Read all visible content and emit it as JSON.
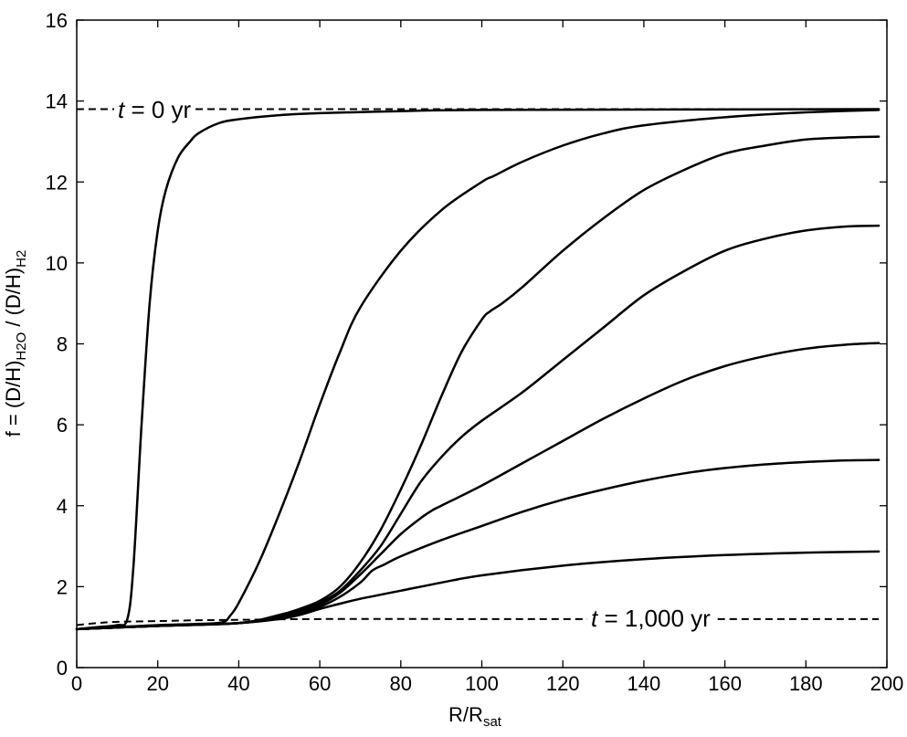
{
  "chart_data": {
    "type": "line",
    "xlabel": {
      "main": "R/R",
      "sub": "sat"
    },
    "ylabel": {
      "p1": "f = (D/H)",
      "s1": "H2O",
      "p2": " / (D/H)",
      "s2": "H2"
    },
    "xlim": [
      0,
      200
    ],
    "ylim": [
      0,
      16
    ],
    "xticks": [
      0,
      20,
      40,
      60,
      80,
      100,
      120,
      140,
      160,
      180,
      200
    ],
    "yticks": [
      0,
      2,
      4,
      6,
      8,
      10,
      12,
      14,
      16
    ],
    "grid": false,
    "annotations": [
      {
        "t": "t",
        "rest": " = 0 yr"
      },
      {
        "t": "t",
        "rest": " = 1,000 yr"
      }
    ],
    "reference_lines": [
      {
        "type": "dashed",
        "x": [
          0,
          30,
          60,
          120,
          198
        ],
        "y": [
          13.8,
          13.8,
          13.8,
          13.8,
          13.8
        ]
      },
      {
        "type": "dashed",
        "x": [
          0,
          5,
          10,
          20,
          30,
          40,
          60,
          100,
          150,
          198
        ],
        "y": [
          1.05,
          1.1,
          1.13,
          1.15,
          1.17,
          1.18,
          1.2,
          1.2,
          1.2,
          1.2
        ]
      }
    ],
    "series": [
      {
        "x": [
          0,
          5,
          10,
          12.5,
          14,
          16,
          18,
          20,
          22,
          25,
          28,
          30,
          35,
          40,
          50,
          60,
          80,
          100,
          198
        ],
        "y": [
          0.95,
          1.0,
          1.05,
          1.2,
          2.5,
          6.0,
          9.0,
          10.8,
          11.8,
          12.6,
          13.0,
          13.2,
          13.45,
          13.55,
          13.65,
          13.7,
          13.75,
          13.78,
          13.8
        ]
      },
      {
        "x": [
          0,
          10,
          20,
          30,
          36,
          38,
          40,
          45,
          50,
          55,
          60,
          65,
          70,
          80,
          90,
          100,
          103,
          110,
          120,
          130,
          140,
          160,
          180,
          198
        ],
        "y": [
          0.95,
          1.0,
          1.05,
          1.08,
          1.12,
          1.3,
          1.6,
          2.6,
          3.8,
          5.1,
          6.5,
          7.8,
          8.9,
          10.3,
          11.3,
          12.0,
          12.15,
          12.5,
          12.9,
          13.2,
          13.4,
          13.6,
          13.72,
          13.78
        ]
      },
      {
        "x": [
          0,
          20,
          40,
          50,
          55,
          60,
          65,
          70,
          75,
          80,
          85,
          90,
          95,
          100,
          102,
          105,
          110,
          120,
          130,
          140,
          150,
          160,
          170,
          180,
          190,
          198
        ],
        "y": [
          0.95,
          1.03,
          1.1,
          1.3,
          1.45,
          1.65,
          2.0,
          2.6,
          3.4,
          4.4,
          5.5,
          6.7,
          7.8,
          8.6,
          8.8,
          9.0,
          9.4,
          10.3,
          11.1,
          11.8,
          12.3,
          12.7,
          12.9,
          13.05,
          13.1,
          13.12
        ]
      },
      {
        "x": [
          0,
          20,
          40,
          50,
          55,
          60,
          65,
          70,
          75,
          80,
          85,
          90,
          95,
          100,
          110,
          120,
          130,
          140,
          150,
          160,
          170,
          180,
          190,
          198
        ],
        "y": [
          0.95,
          1.03,
          1.1,
          1.25,
          1.4,
          1.6,
          1.9,
          2.4,
          3.0,
          3.8,
          4.6,
          5.2,
          5.7,
          6.1,
          6.8,
          7.6,
          8.4,
          9.2,
          9.8,
          10.3,
          10.6,
          10.8,
          10.9,
          10.92
        ]
      },
      {
        "x": [
          0,
          20,
          40,
          50,
          55,
          60,
          65,
          70,
          75,
          80,
          85,
          88,
          90,
          100,
          110,
          120,
          130,
          140,
          150,
          160,
          170,
          180,
          190,
          198
        ],
        "y": [
          0.95,
          1.03,
          1.1,
          1.25,
          1.38,
          1.55,
          1.85,
          2.3,
          2.8,
          3.3,
          3.7,
          3.9,
          4.0,
          4.5,
          5.05,
          5.6,
          6.15,
          6.65,
          7.1,
          7.45,
          7.7,
          7.88,
          7.98,
          8.02
        ]
      },
      {
        "x": [
          0,
          20,
          40,
          50,
          55,
          60,
          65,
          70,
          73,
          76,
          80,
          90,
          100,
          110,
          120,
          130,
          140,
          150,
          160,
          170,
          180,
          190,
          198
        ],
        "y": [
          0.95,
          1.03,
          1.1,
          1.22,
          1.35,
          1.5,
          1.75,
          2.1,
          2.4,
          2.55,
          2.75,
          3.15,
          3.5,
          3.85,
          4.15,
          4.4,
          4.62,
          4.8,
          4.93,
          5.02,
          5.08,
          5.12,
          5.13
        ]
      },
      {
        "x": [
          0,
          20,
          40,
          50,
          55,
          60,
          65,
          70,
          80,
          90,
          100,
          120,
          140,
          160,
          180,
          198
        ],
        "y": [
          0.95,
          1.03,
          1.1,
          1.2,
          1.3,
          1.45,
          1.58,
          1.7,
          1.9,
          2.1,
          2.28,
          2.52,
          2.68,
          2.78,
          2.84,
          2.87
        ]
      }
    ]
  }
}
